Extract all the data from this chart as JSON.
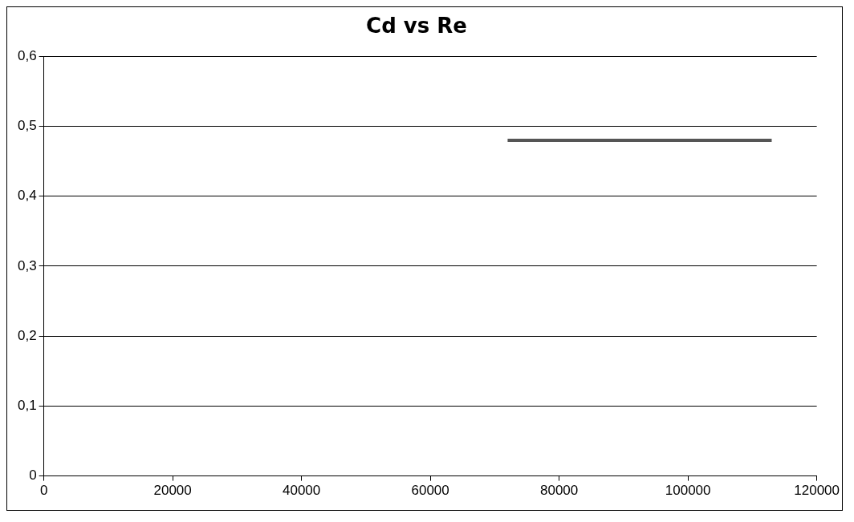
{
  "chart_data": {
    "type": "line",
    "title": "Cd vs Re",
    "x": [
      72000,
      113000
    ],
    "series": [
      {
        "color": "#555555",
        "values": [
          0.48,
          0.48
        ]
      }
    ],
    "xlim": [
      0,
      120000
    ],
    "xticks": [
      0,
      20000,
      40000,
      60000,
      80000,
      100000,
      120000
    ],
    "ylim": [
      0,
      0.6
    ],
    "yticks": [
      0,
      {
        "value": 0.1,
        "label": "0,1"
      },
      {
        "value": 0.2,
        "label": "0,2"
      },
      {
        "value": 0.3,
        "label": "0,3"
      },
      {
        "value": 0.4,
        "label": "0,4"
      },
      {
        "value": 0.5,
        "label": "0,5"
      },
      {
        "value": 0.6,
        "label": "0,6"
      }
    ],
    "grid": "y",
    "legend": false,
    "marker": "none",
    "line_style": "solid"
  }
}
